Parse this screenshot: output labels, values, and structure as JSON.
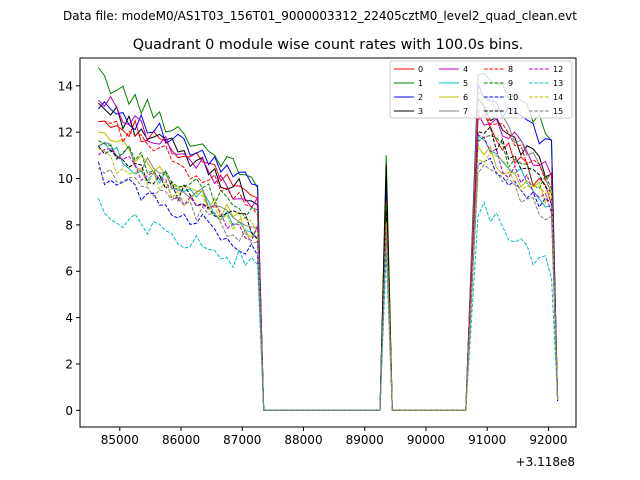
{
  "chart_data": {
    "type": "line",
    "suptitle": "Data file: modeM0/AS1T03_156T01_9000003312_22405cztM0_level2_quad_clean.evt",
    "title": "Quadrant 0 module wise count rates with 100.0s bins.",
    "xlabel": "",
    "ylabel": "",
    "x_offset_label": "+3.118e8",
    "xlim": [
      84350,
      92450
    ],
    "ylim": [
      -0.72,
      15.2
    ],
    "xticks": [
      85000,
      86000,
      87000,
      88000,
      89000,
      90000,
      91000,
      92000
    ],
    "xtick_labels": [
      "85000",
      "86000",
      "87000",
      "88000",
      "89000",
      "90000",
      "91000",
      "92000"
    ],
    "yticks": [
      0,
      2,
      4,
      6,
      8,
      10,
      12,
      14
    ],
    "ytick_labels": [
      "0",
      "2",
      "4",
      "6",
      "8",
      "10",
      "12",
      "14"
    ],
    "legend": {
      "placement": "top-right",
      "columns": 4
    },
    "segments": [
      {
        "x_start": 84650,
        "x_end": 87250,
        "step": 100
      },
      {
        "x_start": 89250,
        "x_end": 89450,
        "step": 100
      },
      {
        "x_start": 90850,
        "x_end": 92050,
        "step": 100
      }
    ],
    "gaps": [
      {
        "x_start": 87350,
        "x_end": 89150,
        "step": 200
      },
      {
        "x_start": 89650,
        "x_end": 90750,
        "step": 200
      }
    ],
    "end_point": {
      "x": 92150
    },
    "series": [
      {
        "name": "0",
        "color": "#ff0000",
        "dash": "solid",
        "start": 12.9,
        "end": 9.3,
        "peak": 9.5,
        "seg3_start": 12.7,
        "seg3_end": 9.2,
        "last": 0.6
      },
      {
        "name": "1",
        "color": "#008000",
        "dash": "solid",
        "start": 14.4,
        "end": 9.8,
        "peak": 11.0,
        "seg3_start": 14.8,
        "seg3_end": 11.9,
        "last": 0.5
      },
      {
        "name": "2",
        "color": "#0000ff",
        "dash": "solid",
        "start": 13.4,
        "end": 9.6,
        "peak": 9.8,
        "seg3_start": 13.8,
        "seg3_end": 11.5,
        "last": 0.4
      },
      {
        "name": "3",
        "color": "#000000",
        "dash": "solid",
        "start": 13.2,
        "end": 9.1,
        "peak": 10.6,
        "seg3_start": 13.4,
        "seg3_end": 10.0,
        "last": 0.5
      },
      {
        "name": "4",
        "color": "#bf00bf",
        "dash": "solid",
        "start": 13.5,
        "end": 8.8,
        "peak": 8.7,
        "seg3_start": 12.9,
        "seg3_end": 10.3,
        "last": 0.5
      },
      {
        "name": "5",
        "color": "#00bfbf",
        "dash": "solid",
        "start": 11.4,
        "end": 7.8,
        "peak": 8.2,
        "seg3_start": 11.5,
        "seg3_end": 9.0,
        "last": 0.4
      },
      {
        "name": "6",
        "color": "#bfbf00",
        "dash": "solid",
        "start": 11.9,
        "end": 7.7,
        "peak": 8.4,
        "seg3_start": 11.4,
        "seg3_end": 9.1,
        "last": 0.4
      },
      {
        "name": "7",
        "color": "#808080",
        "dash": "solid",
        "start": 11.7,
        "end": 8.0,
        "peak": 8.3,
        "seg3_start": 14.0,
        "seg3_end": 9.6,
        "last": 0.5
      },
      {
        "name": "8",
        "color": "#ff0000",
        "dash": "dashed",
        "start": 12.6,
        "end": 8.8,
        "peak": 9.0,
        "seg3_start": 13.1,
        "seg3_end": 10.0,
        "last": 0.5
      },
      {
        "name": "9",
        "color": "#008000",
        "dash": "dashed",
        "start": 11.6,
        "end": 8.4,
        "peak": 8.9,
        "seg3_start": 11.9,
        "seg3_end": 9.5,
        "last": 0.5
      },
      {
        "name": "10",
        "color": "#0000ff",
        "dash": "dashed",
        "start": 10.3,
        "end": 6.9,
        "peak": 7.8,
        "seg3_start": 10.9,
        "seg3_end": 8.6,
        "last": 0.4
      },
      {
        "name": "11",
        "color": "#000000",
        "dash": "dashed",
        "start": 11.1,
        "end": 7.8,
        "peak": 8.6,
        "seg3_start": 12.4,
        "seg3_end": 9.3,
        "last": 0.5
      },
      {
        "name": "12",
        "color": "#bf00bf",
        "dash": "dashed",
        "start": 11.3,
        "end": 7.5,
        "peak": 8.0,
        "seg3_start": 11.6,
        "seg3_end": 8.9,
        "last": 0.5
      },
      {
        "name": "13",
        "color": "#00bfbf",
        "dash": "dashed",
        "start": 8.7,
        "end": 6.2,
        "peak": 6.8,
        "seg3_start": 8.8,
        "seg3_end": 6.0,
        "last": 0.5
      },
      {
        "name": "14",
        "color": "#bfbf00",
        "dash": "dashed",
        "start": 11.0,
        "end": 7.7,
        "peak": 8.1,
        "seg3_start": 11.2,
        "seg3_end": 9.0,
        "last": 0.4
      },
      {
        "name": "15",
        "color": "#808080",
        "dash": "dashed",
        "start": 10.5,
        "end": 7.2,
        "peak": 7.7,
        "seg3_start": 10.6,
        "seg3_end": 8.3,
        "last": 0.5
      }
    ]
  }
}
